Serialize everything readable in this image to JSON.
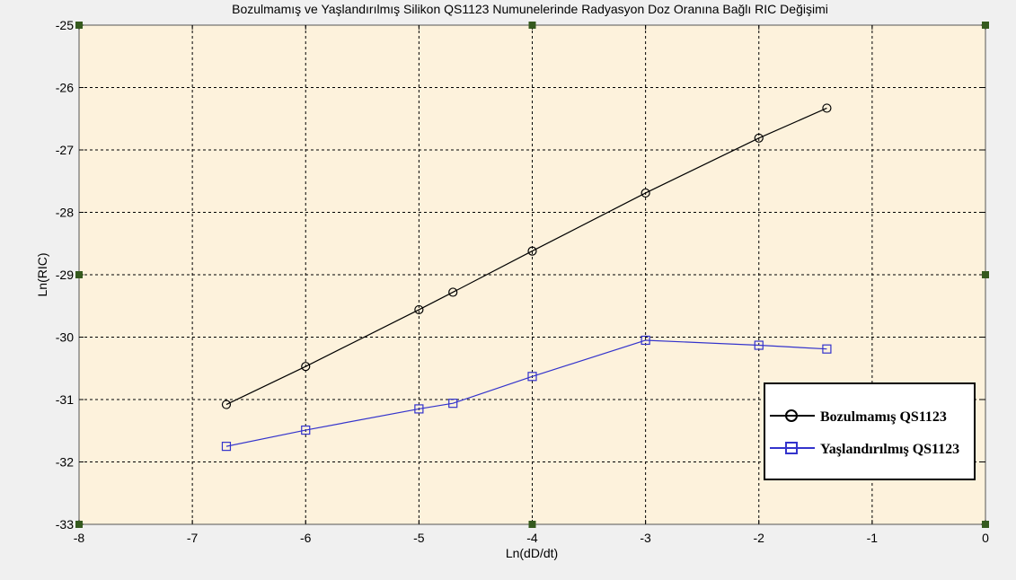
{
  "chart_data": {
    "type": "line",
    "title": "Bozulmamış ve Yaşlandırılmış Silikon QS1123 Numunelerinde Radyasyon Doz Oranına Bağlı RIC Değişimi",
    "xlabel": "Ln(dD/dt)",
    "ylabel": "Ln(RIC)",
    "xlim": [
      -8,
      0
    ],
    "ylim": [
      -33,
      -25
    ],
    "xticks": [
      -8,
      -7,
      -6,
      -5,
      -4,
      -3,
      -2,
      -1,
      0
    ],
    "yticks": [
      -33,
      -32,
      -31,
      -30,
      -29,
      -28,
      -27,
      -26,
      -25
    ],
    "xtick_labels": [
      "-8",
      "-7",
      "-6",
      "-5",
      "-4",
      "-3",
      "-2",
      "-1",
      "0"
    ],
    "ytick_labels": [
      "-33",
      "-32",
      "-31",
      "-30",
      "-29",
      "-28",
      "-27",
      "-26",
      "-25"
    ],
    "grid": true,
    "legend_position": "bottom-right",
    "series": [
      {
        "name": "Bozulmamış QS1123",
        "color": "#000000",
        "marker": "circle",
        "x": [
          -6.7,
          -6.0,
          -5.0,
          -4.7,
          -4.0,
          -3.0,
          -2.0,
          -1.4
        ],
        "y": [
          -31.08,
          -30.47,
          -29.56,
          -29.28,
          -28.62,
          -27.69,
          -26.81,
          -26.33
        ]
      },
      {
        "name": "Yaşlandırılmış QS1123",
        "color": "#3333cc",
        "marker": "square",
        "x": [
          -6.7,
          -6.0,
          -5.0,
          -4.7,
          -4.0,
          -3.0,
          -2.0,
          -1.4
        ],
        "y": [
          -31.75,
          -31.49,
          -31.15,
          -31.06,
          -30.63,
          -30.05,
          -30.13,
          -30.19
        ]
      }
    ],
    "colors": {
      "plot_background": "#fdf2dc",
      "figure_background": "#f0f0f0",
      "grid": "#000000",
      "corner_handles": "#355a1e"
    }
  }
}
